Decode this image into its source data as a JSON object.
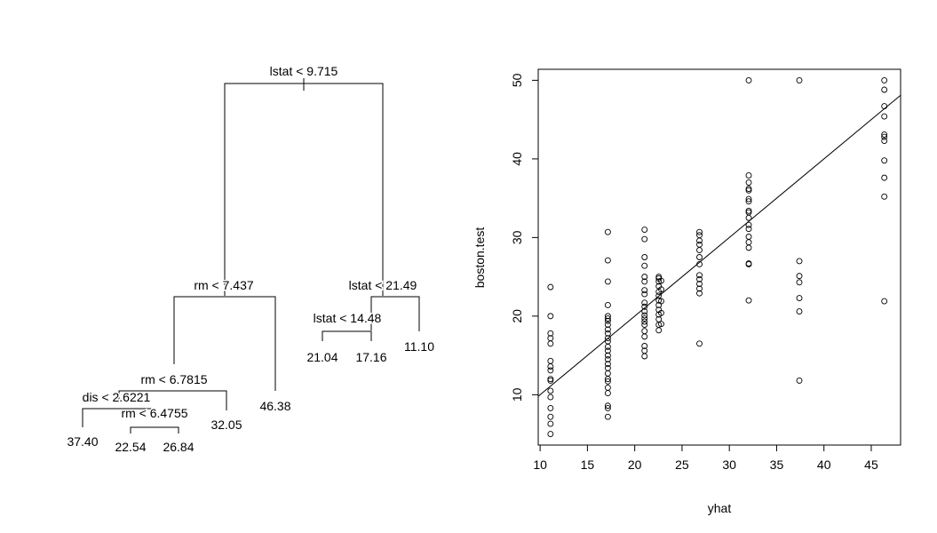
{
  "chart_data": [
    {
      "type": "tree",
      "splits": [
        "lstat < 9.715",
        "rm < 7.437",
        "lstat < 21.49",
        "lstat < 14.48",
        "rm < 6.7815",
        "dis < 2.6221",
        "rm < 6.4755"
      ],
      "leaves": [
        "37.40",
        "22.54",
        "26.84",
        "32.05",
        "46.38",
        "21.04",
        "17.16",
        "11.10"
      ]
    },
    {
      "type": "scatter",
      "xlabel": "yhat",
      "ylabel": "boston.test",
      "xlim": [
        9.8,
        48.1
      ],
      "ylim": [
        3.6,
        51.4
      ],
      "xticks": [
        10,
        15,
        20,
        25,
        30,
        35,
        40,
        45
      ],
      "yticks": [
        10,
        20,
        30,
        40,
        50
      ],
      "reference_line": {
        "slope": 1,
        "intercept": 0
      },
      "groups": [
        {
          "x": 11.1,
          "y": [
            5.0,
            6.3,
            7.2,
            8.3,
            9.7,
            10.5,
            11.8,
            12.0,
            13.1,
            13.6,
            14.3,
            16.5,
            17.2,
            17.8,
            20.0,
            23.7
          ]
        },
        {
          "x": 17.16,
          "y": [
            7.2,
            8.3,
            8.6,
            10.2,
            10.9,
            11.7,
            12.0,
            12.7,
            13.4,
            13.9,
            14.5,
            15.0,
            15.6,
            16.1,
            16.8,
            17.2,
            17.8,
            18.3,
            18.9,
            19.4,
            19.7,
            20.0,
            21.4,
            24.4,
            27.1,
            30.7
          ]
        },
        {
          "x": 21.04,
          "y": [
            14.9,
            15.6,
            16.2,
            17.4,
            18.1,
            18.9,
            19.3,
            19.7,
            20.1,
            20.6,
            21.2,
            21.7,
            22.8,
            23.3,
            24.4,
            25.0,
            26.4,
            27.5,
            29.8,
            31.0
          ]
        },
        {
          "x": 22.54,
          "y": [
            18.2,
            18.9,
            19.6,
            20.2,
            20.8,
            21.4,
            22.0,
            22.6,
            23.1,
            23.8,
            24.4,
            24.8,
            25.0
          ]
        },
        {
          "x": 22.8,
          "y": [
            19.0,
            20.4,
            21.9,
            23.4,
            24.5
          ]
        },
        {
          "x": 26.84,
          "y": [
            16.5,
            22.9,
            23.5,
            24.1,
            24.7,
            25.2,
            26.6,
            27.5,
            28.4,
            29.1,
            29.6,
            30.3,
            30.7
          ]
        },
        {
          "x": 32.05,
          "y": [
            22.0,
            26.6,
            26.7,
            28.7,
            29.4,
            30.1,
            31.1,
            31.6,
            32.5,
            33.2,
            33.4,
            34.6,
            34.9,
            36.0,
            36.2,
            37.0,
            37.9,
            50.0
          ]
        },
        {
          "x": 37.4,
          "y": [
            11.8,
            20.6,
            22.3,
            24.3,
            25.1,
            27.0,
            50.0
          ]
        },
        {
          "x": 46.38,
          "y": [
            21.9,
            35.2,
            37.6,
            39.8,
            42.3,
            42.8,
            43.1,
            45.4,
            46.7,
            48.8,
            50.0
          ]
        }
      ]
    }
  ]
}
